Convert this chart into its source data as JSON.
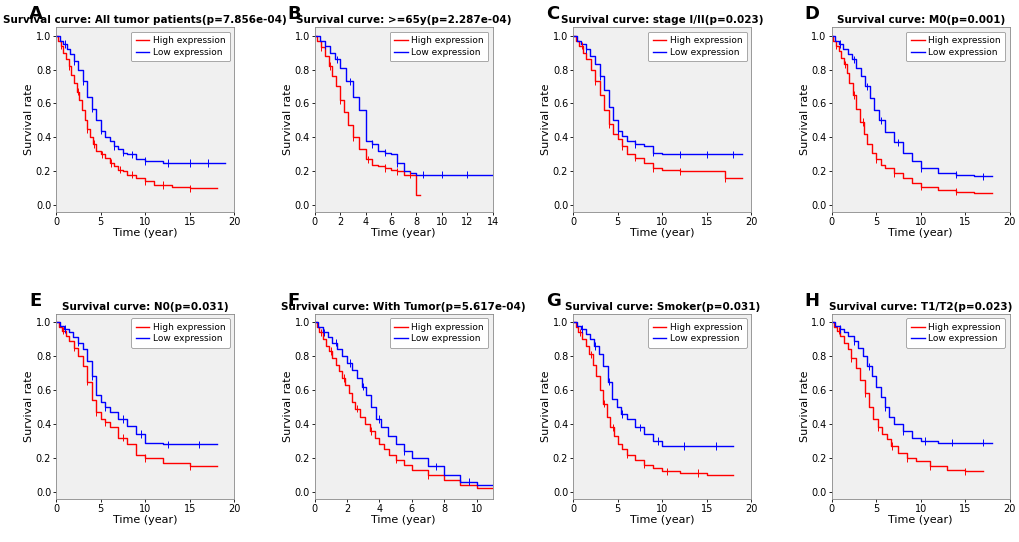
{
  "panels": [
    {
      "label": "A",
      "title": "Survival curve: All tumor patients(p=7.856e-04)",
      "xlabel": "Time (year)",
      "ylabel": "Survival rate",
      "xlim": [
        0,
        20
      ],
      "ylim": [
        -0.04,
        1.05
      ],
      "xticks": [
        0,
        5,
        10,
        15,
        20
      ],
      "yticks": [
        0.0,
        0.2,
        0.4,
        0.6,
        0.8,
        1.0
      ],
      "high": {
        "t": [
          0,
          0.2,
          0.5,
          0.8,
          1.1,
          1.4,
          1.7,
          2.0,
          2.3,
          2.6,
          2.9,
          3.2,
          3.5,
          3.8,
          4.1,
          4.5,
          5.0,
          5.5,
          6.0,
          6.5,
          7.0,
          7.5,
          8.0,
          9.0,
          10.0,
          11.0,
          13.0,
          15.0,
          18.0
        ],
        "s": [
          1.0,
          0.97,
          0.94,
          0.9,
          0.86,
          0.82,
          0.77,
          0.72,
          0.67,
          0.62,
          0.56,
          0.5,
          0.45,
          0.4,
          0.36,
          0.32,
          0.3,
          0.28,
          0.25,
          0.23,
          0.21,
          0.2,
          0.18,
          0.16,
          0.14,
          0.12,
          0.11,
          0.1,
          0.1
        ]
      },
      "low": {
        "t": [
          0,
          0.4,
          0.8,
          1.2,
          1.6,
          2.0,
          2.5,
          3.0,
          3.5,
          4.0,
          4.5,
          5.0,
          5.5,
          6.0,
          6.5,
          7.0,
          7.5,
          8.0,
          9.0,
          10.0,
          12.0,
          14.0,
          17.0,
          19.0
        ],
        "s": [
          1.0,
          0.97,
          0.95,
          0.92,
          0.89,
          0.85,
          0.8,
          0.73,
          0.64,
          0.57,
          0.5,
          0.44,
          0.4,
          0.38,
          0.35,
          0.33,
          0.31,
          0.3,
          0.27,
          0.26,
          0.25,
          0.25,
          0.25,
          0.25
        ]
      },
      "censor_high_t": [
        0.5,
        1.5,
        2.5,
        3.5,
        4.2,
        5.2,
        6.2,
        7.2,
        8.5,
        10.0,
        12.0,
        15.0
      ],
      "censor_low_t": [
        1.0,
        2.0,
        3.0,
        4.0,
        5.0,
        6.5,
        7.5,
        8.5,
        10.0,
        12.5,
        15.0,
        17.0
      ]
    },
    {
      "label": "B",
      "title": "Survival curve: >=65y(p=2.287e-04)",
      "xlabel": "Time (year)",
      "ylabel": "Survival rate",
      "xlim": [
        0,
        14
      ],
      "ylim": [
        -0.04,
        1.05
      ],
      "xticks": [
        0,
        2,
        4,
        6,
        8,
        10,
        12,
        14
      ],
      "yticks": [
        0.0,
        0.2,
        0.4,
        0.6,
        0.8,
        1.0
      ],
      "high": {
        "t": [
          0,
          0.2,
          0.5,
          0.8,
          1.1,
          1.4,
          1.7,
          2.0,
          2.3,
          2.6,
          3.0,
          3.5,
          4.0,
          4.5,
          5.0,
          5.5,
          6.0,
          6.5,
          7.0,
          8.0,
          8.3
        ],
        "s": [
          1.0,
          0.97,
          0.93,
          0.88,
          0.82,
          0.76,
          0.7,
          0.62,
          0.55,
          0.47,
          0.4,
          0.33,
          0.27,
          0.24,
          0.23,
          0.22,
          0.21,
          0.2,
          0.18,
          0.06,
          0.06
        ]
      },
      "low": {
        "t": [
          0,
          0.4,
          0.8,
          1.2,
          1.6,
          2.0,
          2.5,
          3.0,
          3.5,
          4.0,
          4.5,
          5.0,
          5.5,
          6.0,
          6.5,
          7.0,
          7.5,
          8.0,
          9.0,
          10.0,
          12.0,
          14.0
        ],
        "s": [
          1.0,
          0.97,
          0.94,
          0.9,
          0.86,
          0.81,
          0.73,
          0.64,
          0.56,
          0.38,
          0.36,
          0.32,
          0.31,
          0.3,
          0.25,
          0.2,
          0.19,
          0.18,
          0.18,
          0.18,
          0.18,
          0.18
        ]
      },
      "censor_high_t": [
        0.5,
        1.2,
        2.0,
        3.0,
        4.2,
        5.5,
        6.5,
        7.5
      ],
      "censor_low_t": [
        0.8,
        1.8,
        2.8,
        4.5,
        5.5,
        6.5,
        8.5,
        10.0,
        12.0
      ]
    },
    {
      "label": "C",
      "title": "Survival curve: stage I/II(p=0.023)",
      "xlabel": "Time (year)",
      "ylabel": "Survival rate",
      "xlim": [
        0,
        20
      ],
      "ylim": [
        -0.04,
        1.05
      ],
      "xticks": [
        0,
        5,
        10,
        15,
        20
      ],
      "yticks": [
        0.0,
        0.2,
        0.4,
        0.6,
        0.8,
        1.0
      ],
      "high": {
        "t": [
          0,
          0.3,
          0.7,
          1.1,
          1.5,
          2.0,
          2.5,
          3.0,
          3.5,
          4.0,
          4.5,
          5.0,
          5.5,
          6.0,
          7.0,
          8.0,
          9.0,
          10.0,
          12.0,
          17.0,
          19.0
        ],
        "s": [
          1.0,
          0.97,
          0.94,
          0.9,
          0.86,
          0.8,
          0.73,
          0.65,
          0.56,
          0.48,
          0.42,
          0.39,
          0.35,
          0.3,
          0.28,
          0.25,
          0.22,
          0.21,
          0.2,
          0.16,
          0.16
        ]
      },
      "low": {
        "t": [
          0,
          0.4,
          0.9,
          1.4,
          1.9,
          2.5,
          3.0,
          3.5,
          4.0,
          4.5,
          5.0,
          5.5,
          6.0,
          7.0,
          8.0,
          9.0,
          10.0,
          13.0,
          17.0,
          19.0
        ],
        "s": [
          1.0,
          0.97,
          0.95,
          0.92,
          0.88,
          0.83,
          0.76,
          0.68,
          0.58,
          0.5,
          0.44,
          0.41,
          0.38,
          0.36,
          0.35,
          0.31,
          0.3,
          0.3,
          0.3,
          0.3
        ]
      },
      "censor_high_t": [
        1.0,
        2.5,
        4.0,
        5.5,
        7.0,
        9.0,
        12.0,
        17.0
      ],
      "censor_low_t": [
        1.5,
        3.0,
        5.0,
        7.0,
        9.0,
        12.0,
        15.0,
        18.0
      ]
    },
    {
      "label": "D",
      "title": "Survival curve: M0(p=0.001)",
      "xlabel": "Time (year)",
      "ylabel": "Survival rate",
      "xlim": [
        0,
        20
      ],
      "ylim": [
        -0.04,
        1.05
      ],
      "xticks": [
        0,
        5,
        10,
        15,
        20
      ],
      "yticks": [
        0.0,
        0.2,
        0.4,
        0.6,
        0.8,
        1.0
      ],
      "high": {
        "t": [
          0,
          0.2,
          0.5,
          0.8,
          1.1,
          1.4,
          1.7,
          2.0,
          2.4,
          2.8,
          3.2,
          3.6,
          4.0,
          4.5,
          5.0,
          5.5,
          6.0,
          7.0,
          8.0,
          9.0,
          10.0,
          12.0,
          14.0,
          16.0,
          18.0
        ],
        "s": [
          1.0,
          0.97,
          0.94,
          0.91,
          0.87,
          0.83,
          0.78,
          0.72,
          0.65,
          0.57,
          0.49,
          0.42,
          0.36,
          0.31,
          0.27,
          0.24,
          0.22,
          0.19,
          0.16,
          0.13,
          0.11,
          0.09,
          0.08,
          0.07,
          0.07
        ]
      },
      "low": {
        "t": [
          0,
          0.4,
          0.8,
          1.3,
          1.8,
          2.3,
          2.8,
          3.3,
          3.8,
          4.3,
          4.8,
          5.3,
          6.0,
          7.0,
          8.0,
          9.0,
          10.0,
          12.0,
          14.0,
          16.0,
          18.0
        ],
        "s": [
          1.0,
          0.97,
          0.95,
          0.92,
          0.89,
          0.86,
          0.81,
          0.76,
          0.7,
          0.63,
          0.56,
          0.5,
          0.43,
          0.37,
          0.31,
          0.26,
          0.22,
          0.19,
          0.18,
          0.17,
          0.17
        ]
      },
      "censor_high_t": [
        0.5,
        1.5,
        2.5,
        3.5,
        5.0,
        7.0,
        10.0,
        14.0
      ],
      "censor_low_t": [
        1.0,
        2.5,
        4.0,
        5.5,
        7.5,
        10.0,
        14.0,
        17.0
      ]
    },
    {
      "label": "E",
      "title": "Survival curve: N0(p=0.031)",
      "xlabel": "Time (year)",
      "ylabel": "Survival rate",
      "xlim": [
        0,
        20
      ],
      "ylim": [
        -0.04,
        1.05
      ],
      "xticks": [
        0,
        5,
        10,
        15,
        20
      ],
      "yticks": [
        0.0,
        0.2,
        0.4,
        0.6,
        0.8,
        1.0
      ],
      "high": {
        "t": [
          0,
          0.3,
          0.7,
          1.1,
          1.5,
          2.0,
          2.5,
          3.0,
          3.5,
          4.0,
          4.5,
          5.0,
          5.5,
          6.0,
          7.0,
          8.0,
          9.0,
          10.0,
          12.0,
          15.0,
          18.0
        ],
        "s": [
          1.0,
          0.97,
          0.95,
          0.92,
          0.89,
          0.85,
          0.8,
          0.74,
          0.65,
          0.54,
          0.47,
          0.43,
          0.41,
          0.38,
          0.32,
          0.28,
          0.22,
          0.2,
          0.17,
          0.15,
          0.15
        ]
      },
      "low": {
        "t": [
          0,
          0.4,
          0.9,
          1.4,
          1.9,
          2.5,
          3.0,
          3.5,
          4.0,
          4.5,
          5.0,
          5.5,
          6.0,
          7.0,
          8.0,
          9.0,
          10.0,
          12.0,
          15.0,
          18.0
        ],
        "s": [
          1.0,
          0.98,
          0.96,
          0.94,
          0.91,
          0.88,
          0.84,
          0.77,
          0.68,
          0.57,
          0.53,
          0.5,
          0.47,
          0.43,
          0.39,
          0.34,
          0.29,
          0.28,
          0.28,
          0.28
        ]
      },
      "censor_high_t": [
        0.8,
        2.0,
        3.5,
        4.5,
        5.5,
        7.5,
        10.0,
        15.0
      ],
      "censor_low_t": [
        1.0,
        2.5,
        4.0,
        5.5,
        7.5,
        9.5,
        12.5,
        16.0
      ]
    },
    {
      "label": "F",
      "title": "Survival curve: With Tumor(p=5.617e-04)",
      "xlabel": "Time (year)",
      "ylabel": "Survival rate",
      "xlim": [
        0,
        11
      ],
      "ylim": [
        -0.04,
        1.05
      ],
      "xticks": [
        0,
        2,
        4,
        6,
        8,
        10
      ],
      "yticks": [
        0.0,
        0.2,
        0.4,
        0.6,
        0.8,
        1.0
      ],
      "high": {
        "t": [
          0,
          0.15,
          0.3,
          0.5,
          0.7,
          0.9,
          1.1,
          1.3,
          1.5,
          1.7,
          1.9,
          2.1,
          2.3,
          2.5,
          2.8,
          3.1,
          3.4,
          3.7,
          4.0,
          4.3,
          4.6,
          5.0,
          5.5,
          6.0,
          7.0,
          8.0,
          9.0,
          10.0,
          11.0
        ],
        "s": [
          1.0,
          0.97,
          0.94,
          0.9,
          0.86,
          0.83,
          0.79,
          0.75,
          0.71,
          0.67,
          0.63,
          0.58,
          0.53,
          0.49,
          0.44,
          0.4,
          0.36,
          0.32,
          0.28,
          0.25,
          0.22,
          0.19,
          0.16,
          0.13,
          0.1,
          0.07,
          0.04,
          0.02,
          0.02
        ]
      },
      "low": {
        "t": [
          0,
          0.2,
          0.5,
          0.8,
          1.1,
          1.4,
          1.7,
          2.0,
          2.3,
          2.6,
          2.9,
          3.2,
          3.5,
          3.8,
          4.1,
          4.5,
          5.0,
          5.5,
          6.0,
          7.0,
          8.0,
          9.0,
          10.0,
          11.0
        ],
        "s": [
          1.0,
          0.97,
          0.94,
          0.91,
          0.88,
          0.84,
          0.8,
          0.76,
          0.72,
          0.67,
          0.62,
          0.57,
          0.5,
          0.43,
          0.38,
          0.33,
          0.28,
          0.24,
          0.2,
          0.15,
          0.1,
          0.06,
          0.04,
          0.04
        ]
      },
      "censor_high_t": [
        0.4,
        1.0,
        1.8,
        2.6,
        3.5,
        5.0,
        7.0
      ],
      "censor_low_t": [
        0.6,
        1.3,
        2.2,
        3.0,
        4.0,
        5.5,
        7.5,
        9.5
      ]
    },
    {
      "label": "G",
      "title": "Survival curve: Smoker(p=0.031)",
      "xlabel": "Time (year)",
      "ylabel": "Survival rate",
      "xlim": [
        0,
        20
      ],
      "ylim": [
        -0.04,
        1.05
      ],
      "xticks": [
        0,
        5,
        10,
        15,
        20
      ],
      "yticks": [
        0.0,
        0.2,
        0.4,
        0.6,
        0.8,
        1.0
      ],
      "high": {
        "t": [
          0,
          0.3,
          0.6,
          1.0,
          1.4,
          1.8,
          2.2,
          2.6,
          3.0,
          3.4,
          3.8,
          4.2,
          4.6,
          5.0,
          5.5,
          6.0,
          7.0,
          8.0,
          9.0,
          10.0,
          12.0,
          15.0,
          18.0
        ],
        "s": [
          1.0,
          0.97,
          0.94,
          0.9,
          0.86,
          0.81,
          0.75,
          0.68,
          0.6,
          0.52,
          0.44,
          0.38,
          0.33,
          0.28,
          0.25,
          0.22,
          0.19,
          0.16,
          0.14,
          0.12,
          0.11,
          0.1,
          0.1
        ]
      },
      "low": {
        "t": [
          0,
          0.4,
          0.9,
          1.4,
          1.9,
          2.4,
          2.9,
          3.4,
          3.9,
          4.4,
          4.9,
          5.4,
          6.0,
          7.0,
          8.0,
          9.0,
          10.0,
          12.0,
          15.0,
          18.0
        ],
        "s": [
          1.0,
          0.98,
          0.96,
          0.93,
          0.9,
          0.86,
          0.81,
          0.74,
          0.65,
          0.55,
          0.5,
          0.46,
          0.43,
          0.38,
          0.34,
          0.3,
          0.27,
          0.27,
          0.27,
          0.27
        ]
      },
      "censor_high_t": [
        0.8,
        2.0,
        3.5,
        4.5,
        6.0,
        8.0,
        10.5,
        14.0
      ],
      "censor_low_t": [
        1.0,
        2.5,
        4.0,
        5.5,
        7.5,
        9.5,
        12.5,
        16.0
      ]
    },
    {
      "label": "H",
      "title": "Survival curve: T1/T2(p=0.023)",
      "xlabel": "Time (year)",
      "ylabel": "Survival rate",
      "xlim": [
        0,
        20
      ],
      "ylim": [
        -0.04,
        1.05
      ],
      "xticks": [
        0,
        5,
        10,
        15,
        20
      ],
      "yticks": [
        0.0,
        0.2,
        0.4,
        0.6,
        0.8,
        1.0
      ],
      "high": {
        "t": [
          0,
          0.3,
          0.6,
          1.0,
          1.4,
          1.8,
          2.2,
          2.7,
          3.2,
          3.7,
          4.2,
          4.7,
          5.2,
          5.7,
          6.2,
          6.7,
          7.5,
          8.5,
          9.5,
          11.0,
          13.0,
          15.0,
          17.0
        ],
        "s": [
          1.0,
          0.97,
          0.95,
          0.92,
          0.88,
          0.84,
          0.79,
          0.73,
          0.66,
          0.58,
          0.5,
          0.43,
          0.38,
          0.34,
          0.31,
          0.27,
          0.23,
          0.2,
          0.18,
          0.15,
          0.13,
          0.12,
          0.12
        ]
      },
      "low": {
        "t": [
          0,
          0.4,
          0.9,
          1.4,
          1.9,
          2.5,
          3.0,
          3.5,
          4.0,
          4.5,
          5.0,
          5.5,
          6.0,
          6.5,
          7.0,
          8.0,
          9.0,
          10.0,
          12.0,
          15.0,
          18.0
        ],
        "s": [
          1.0,
          0.98,
          0.96,
          0.94,
          0.92,
          0.89,
          0.85,
          0.8,
          0.74,
          0.68,
          0.62,
          0.56,
          0.5,
          0.44,
          0.4,
          0.36,
          0.32,
          0.3,
          0.29,
          0.29,
          0.29
        ]
      },
      "censor_high_t": [
        0.8,
        2.2,
        3.8,
        5.2,
        6.8,
        8.5,
        11.0,
        15.0
      ],
      "censor_low_t": [
        1.0,
        2.5,
        4.2,
        6.0,
        8.0,
        10.5,
        13.5,
        17.0
      ]
    }
  ],
  "high_color": "#FF0000",
  "low_color": "#0000FF",
  "bg_color": "#FFFFFF",
  "panel_bg": "#F0F0F0",
  "tick_fontsize": 7,
  "label_fontsize": 8,
  "title_fontsize": 7.5,
  "panel_label_fontsize": 13,
  "legend_fontsize": 6.5,
  "linewidth": 1.0
}
